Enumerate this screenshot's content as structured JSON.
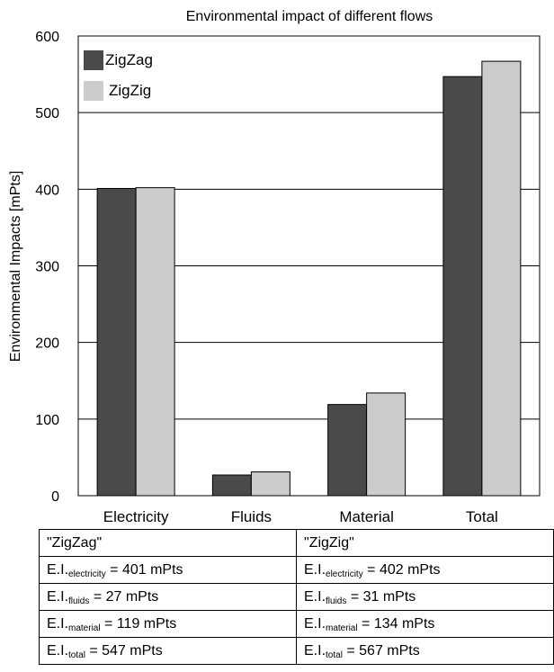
{
  "chart_data": {
    "type": "bar",
    "title": "Environmental impact of different flows",
    "xlabel": "",
    "ylabel": "Environmental Impacts [mPts]",
    "categories": [
      "Electricity",
      "Fluids",
      "Material",
      "Total"
    ],
    "series": [
      {
        "name": "ZigZag",
        "color": "#4a4a4a",
        "values": [
          401,
          27,
          119,
          547
        ]
      },
      {
        "name": "ZigZig",
        "color": "#cccccc",
        "values": [
          402,
          31,
          134,
          567
        ]
      }
    ],
    "ylim": [
      0,
      600
    ],
    "yticks": [
      "0",
      "100",
      "200",
      "300",
      "400",
      "500",
      "600"
    ],
    "grid": true,
    "legend_position": "top-left"
  },
  "table": {
    "headers": [
      "\"ZigZag\"",
      "\"ZigZig\""
    ],
    "rows": [
      [
        {
          "prefix": "E.I.",
          "sub": "electricity",
          "rest": " = 401 mPts"
        },
        {
          "prefix": "E.I.",
          "sub": "electricity",
          "rest": " = 402 mPts"
        }
      ],
      [
        {
          "prefix": "E.I.",
          "sub": "fluids",
          "rest": " = 27 mPts"
        },
        {
          "prefix": "E.I.",
          "sub": "fluids",
          "rest": " = 31 mPts"
        }
      ],
      [
        {
          "prefix": "E.I.",
          "sub": "material",
          "rest": " = 119 mPts"
        },
        {
          "prefix": "E.I.",
          "sub": "material",
          "rest": " = 134 mPts"
        }
      ],
      [
        {
          "prefix": "E.I.",
          "sub": "total",
          "rest": " = 547 mPts"
        },
        {
          "prefix": "E.I.",
          "sub": "total",
          "rest": " = 567 mPts"
        }
      ]
    ]
  }
}
